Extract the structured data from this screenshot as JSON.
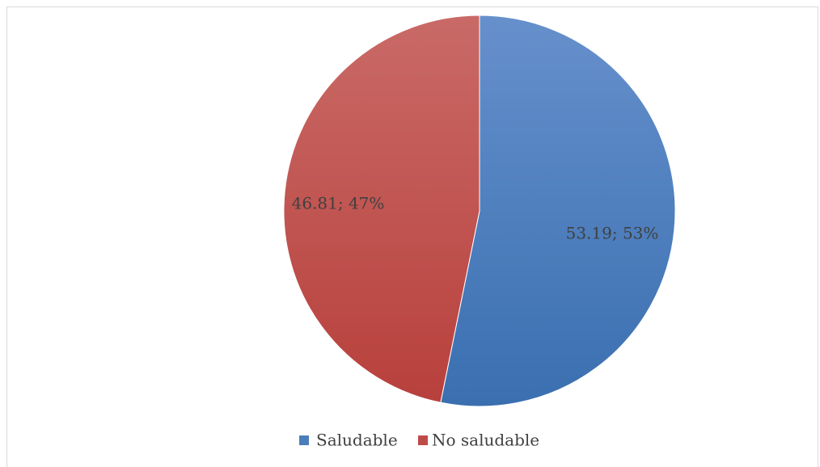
{
  "chart_data": {
    "type": "pie",
    "title": "",
    "categories": [
      "Saludable",
      "No saludable"
    ],
    "values": [
      53.19,
      46.81
    ],
    "data_labels": [
      "53.19; 53%",
      "46.81; 47%"
    ],
    "colors": [
      "#4a7ebb",
      "#be4b48"
    ],
    "legend": {
      "placement": "bottom",
      "entries": [
        "Saludable",
        "No saludable"
      ]
    },
    "start_angle_deg": 0,
    "direction": "clockwise"
  }
}
